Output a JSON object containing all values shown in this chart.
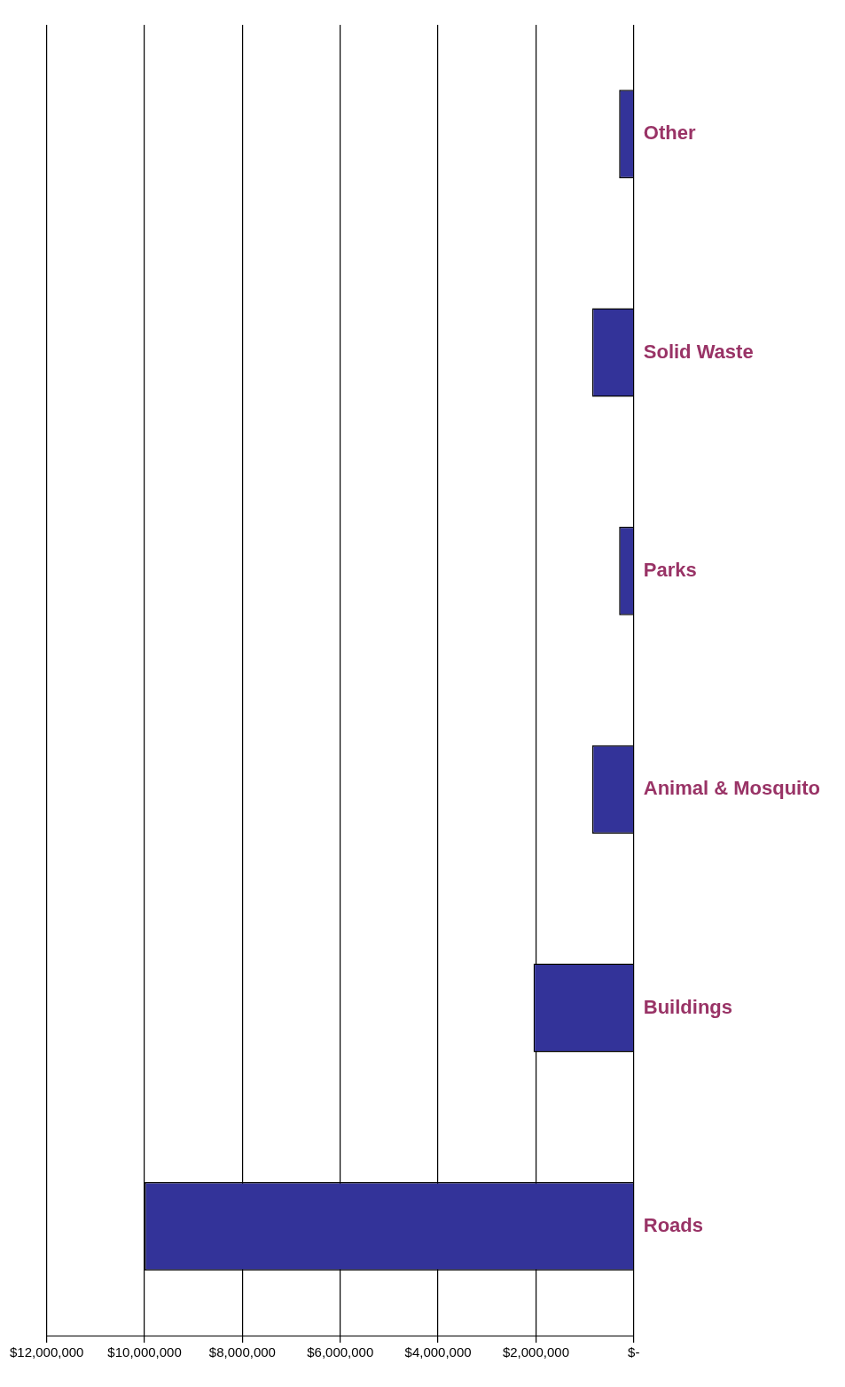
{
  "chart_data": {
    "type": "bar",
    "orientation": "horizontal",
    "categories": [
      "Other",
      "Solid Waste",
      "Parks",
      "Animal & Mosquito",
      "Buildings",
      "Roads"
    ],
    "values": [
      300000,
      850000,
      300000,
      850000,
      2050000,
      10000000
    ],
    "color": "#333399",
    "xlim": [
      12000000,
      0
    ],
    "xticks": [
      {
        "value": 12000000,
        "label": "$12,000,000"
      },
      {
        "value": 10000000,
        "label": "$10,000,000"
      },
      {
        "value": 8000000,
        "label": "$8,000,000"
      },
      {
        "value": 6000000,
        "label": "$6,000,000"
      },
      {
        "value": 4000000,
        "label": "$4,000,000"
      },
      {
        "value": 2000000,
        "label": "$2,000,000"
      },
      {
        "value": 0,
        "label": "$-"
      }
    ],
    "grid": "x",
    "legend": false
  }
}
